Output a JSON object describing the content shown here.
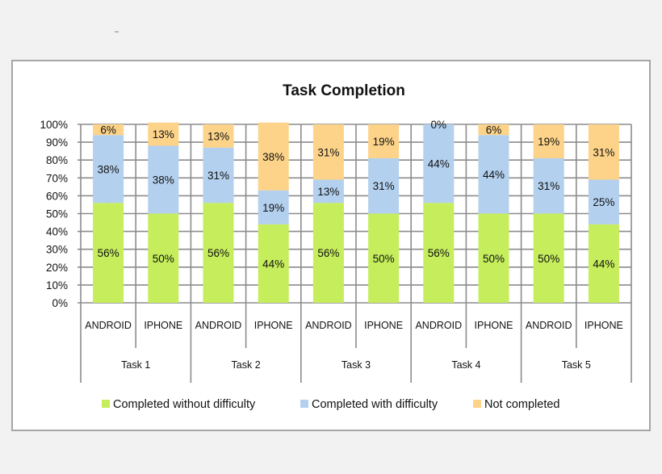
{
  "chart_data": {
    "type": "bar",
    "stacked": true,
    "title": "Task Completion",
    "y_ticks": [
      "0%",
      "10%",
      "20%",
      "30%",
      "40%",
      "50%",
      "60%",
      "70%",
      "80%",
      "90%",
      "100%"
    ],
    "ylim": [
      0,
      100
    ],
    "grid": true,
    "legend_position": "bottom",
    "groups": [
      "Task 1",
      "Task 2",
      "Task 3",
      "Task 4",
      "Task 5"
    ],
    "categories": [
      "ANDROID",
      "IPHONE",
      "ANDROID",
      "IPHONE",
      "ANDROID",
      "IPHONE",
      "ANDROID",
      "IPHONE",
      "ANDROID",
      "IPHONE"
    ],
    "series": [
      {
        "name": "Completed without difficulty",
        "color": "#c5ed5c",
        "values": [
          56,
          50,
          56,
          44,
          56,
          50,
          56,
          50,
          50,
          44
        ],
        "labels": [
          "56%",
          "50%",
          "56%",
          "44%",
          "56%",
          "50%",
          "56%",
          "50%",
          "50%",
          "44%"
        ]
      },
      {
        "name": "Completed with difficulty",
        "color": "#b3d0ee",
        "values": [
          38,
          38,
          31,
          19,
          13,
          31,
          44,
          44,
          31,
          25
        ],
        "labels": [
          "38%",
          "38%",
          "31%",
          "19%",
          "13%",
          "31%",
          "44%",
          "44%",
          "31%",
          "25%"
        ]
      },
      {
        "name": "Not completed",
        "color": "#fcd389",
        "values": [
          6,
          13,
          13,
          38,
          31,
          19,
          0,
          6,
          19,
          31
        ],
        "labels": [
          "6%",
          "13%",
          "13%",
          "38%",
          "31%",
          "19%",
          "0%",
          "6%",
          "19%",
          "31%"
        ]
      }
    ]
  }
}
